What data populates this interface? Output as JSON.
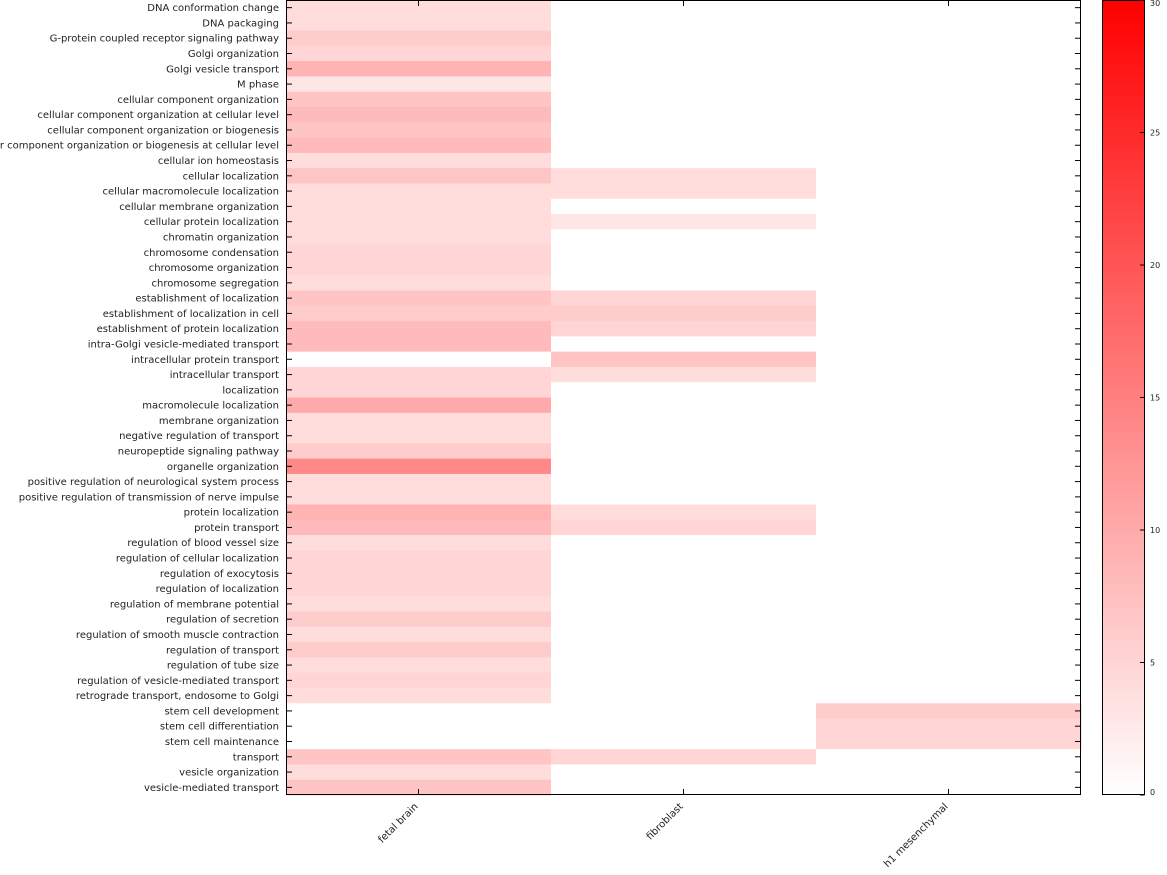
{
  "chart_data": {
    "type": "heatmap",
    "title": "",
    "xlabel": "",
    "ylabel": "",
    "columns": [
      "fetal brain",
      "fibroblast",
      "h1 mesenchymal"
    ],
    "rows": [
      "DNA conformation change",
      "DNA packaging",
      "G-protein coupled receptor signaling pathway",
      "Golgi organization",
      "Golgi vesicle transport",
      "M phase",
      "cellular component organization",
      "cellular component organization at cellular level",
      "cellular component organization or biogenesis",
      "cellular component organization or biogenesis at cellular level",
      "cellular ion homeostasis",
      "cellular localization",
      "cellular macromolecule localization",
      "cellular membrane organization",
      "cellular protein localization",
      "chromatin organization",
      "chromosome condensation",
      "chromosome organization",
      "chromosome segregation",
      "establishment of localization",
      "establishment of localization in cell",
      "establishment of protein localization",
      "intra-Golgi vesicle-mediated transport",
      "intracellular protein transport",
      "intracellular transport",
      "localization",
      "macromolecule localization",
      "membrane organization",
      "negative regulation of transport",
      "neuropeptide signaling pathway",
      "organelle organization",
      "positive regulation of neurological system process",
      "positive regulation of transmission of nerve impulse",
      "protein localization",
      "protein transport",
      "regulation of blood vessel size",
      "regulation of cellular localization",
      "regulation of exocytosis",
      "regulation of localization",
      "regulation of membrane potential",
      "regulation of secretion",
      "regulation of smooth muscle contraction",
      "regulation of transport",
      "regulation of tube size",
      "regulation of vesicle-mediated transport",
      "retrograde transport, endosome to Golgi",
      "stem cell development",
      "stem cell differentiation",
      "stem cell maintenance",
      "transport",
      "vesicle organization",
      "vesicle-mediated transport"
    ],
    "values": [
      [
        4,
        0,
        0
      ],
      [
        4,
        0,
        0
      ],
      [
        6,
        0,
        0
      ],
      [
        5,
        0,
        0
      ],
      [
        9,
        0,
        0
      ],
      [
        3,
        0,
        0
      ],
      [
        7,
        0,
        0
      ],
      [
        8,
        0,
        0
      ],
      [
        7,
        0,
        0
      ],
      [
        8,
        0,
        0
      ],
      [
        4,
        0,
        0
      ],
      [
        7,
        4,
        0
      ],
      [
        4,
        4,
        0
      ],
      [
        4,
        0,
        0
      ],
      [
        4,
        3,
        0
      ],
      [
        4,
        0,
        0
      ],
      [
        5,
        0,
        0
      ],
      [
        5,
        0,
        0
      ],
      [
        4,
        0,
        0
      ],
      [
        7,
        5,
        0
      ],
      [
        6,
        6,
        0
      ],
      [
        8,
        5,
        0
      ],
      [
        8,
        0,
        0
      ],
      [
        0,
        7,
        0
      ],
      [
        5,
        4,
        0
      ],
      [
        5,
        0,
        0
      ],
      [
        10,
        0,
        0
      ],
      [
        4,
        0,
        0
      ],
      [
        4,
        0,
        0
      ],
      [
        6,
        0,
        0
      ],
      [
        14,
        0,
        0
      ],
      [
        4,
        0,
        0
      ],
      [
        4,
        0,
        0
      ],
      [
        9,
        4,
        0
      ],
      [
        8,
        5,
        0
      ],
      [
        4,
        0,
        0
      ],
      [
        5,
        0,
        0
      ],
      [
        5,
        0,
        0
      ],
      [
        5,
        0,
        0
      ],
      [
        4,
        0,
        0
      ],
      [
        6,
        0,
        0
      ],
      [
        4,
        0,
        0
      ],
      [
        6,
        0,
        0
      ],
      [
        4,
        0,
        0
      ],
      [
        5,
        0,
        0
      ],
      [
        4,
        0,
        0
      ],
      [
        0,
        0,
        6
      ],
      [
        0,
        0,
        5
      ],
      [
        0,
        0,
        5
      ],
      [
        7,
        5,
        0
      ],
      [
        4,
        0,
        0
      ],
      [
        7,
        0,
        0
      ]
    ],
    "colorbar": {
      "min": 0,
      "max": 30,
      "ticks": [
        0,
        5,
        10,
        15,
        20,
        25,
        30
      ],
      "color_low": "#ffffff",
      "color_high": "#ff0000"
    },
    "grid": false,
    "legend": "colorbar-right"
  }
}
